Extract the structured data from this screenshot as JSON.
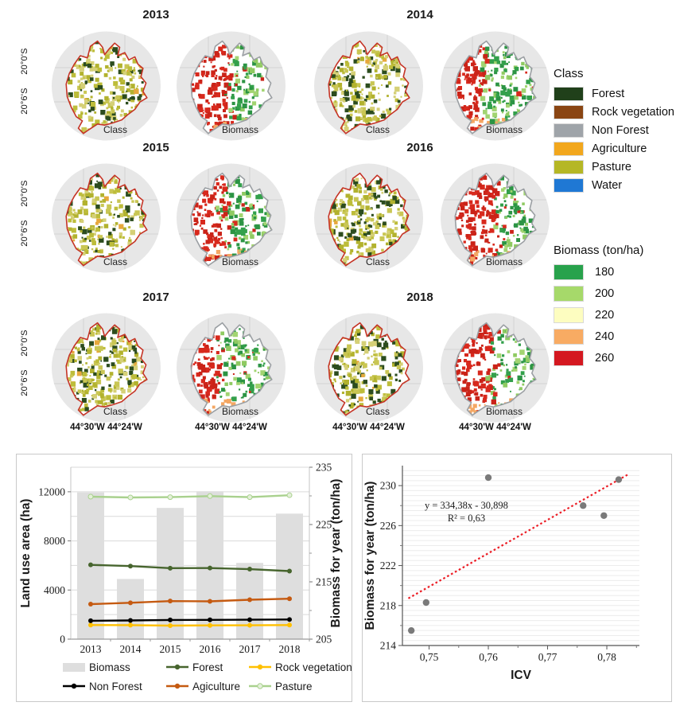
{
  "maps": {
    "years": [
      "2013",
      "2014",
      "2015",
      "2016",
      "2017",
      "2018"
    ],
    "panel_types": [
      "Class",
      "Biomass"
    ],
    "lat_ticks": [
      "20°0'S",
      "20°6'S"
    ],
    "lon_tick": "44°30'W  44°24'W",
    "colors": {
      "disc": "#e7e7e7",
      "graticule": "#d3d3d3",
      "class_border": "#c53426",
      "biomass_border": "#9b9fa3",
      "class_fills": [
        "#bdbd3a",
        "#c9c654",
        "#d5d077",
        "#b2b22e"
      ],
      "class_forest": "#2c4c1e",
      "class_agri": "#e7a83c",
      "biomass_red": [
        "#d8291d",
        "#ca2318"
      ],
      "biomass_green": [
        "#33a04b",
        "#2c9444"
      ],
      "biomass_lightgreen": [
        "#a2d471",
        "#8fca62"
      ],
      "biomass_orange": "#f4a763"
    },
    "red_extent": [
      50,
      40,
      44,
      54,
      38,
      50
    ],
    "south_strip": [
      0.25,
      0.6,
      0.5,
      0.3,
      0.55,
      0.55
    ]
  },
  "class_legend": {
    "title": "Class",
    "items": [
      {
        "label": "Forest",
        "color": "#20401a"
      },
      {
        "label": "Rock vegetation",
        "color": "#8a4513"
      },
      {
        "label": "Non Forest",
        "color": "#9fa4a9"
      },
      {
        "label": "Agriculture",
        "color": "#f2a71d"
      },
      {
        "label": "Pasture",
        "color": "#b5b725"
      },
      {
        "label": "Water",
        "color": "#1f78d4"
      }
    ]
  },
  "biomass_legend": {
    "title": "Biomass (ton/ha)",
    "items": [
      {
        "label": "180",
        "color": "#28a24c"
      },
      {
        "label": "200",
        "color": "#a6d96a"
      },
      {
        "label": "220",
        "color": "#fdfdc0"
      },
      {
        "label": "240",
        "color": "#f8ab63"
      },
      {
        "label": "260",
        "color": "#d41820"
      }
    ]
  },
  "chart_data": [
    {
      "type": "bar+line",
      "categories": [
        "2013",
        "2014",
        "2015",
        "2016",
        "2017",
        "2018"
      ],
      "bars": {
        "name": "Biomass",
        "axis": "right",
        "color": "#dedede",
        "values": [
          230.6,
          215.5,
          227.9,
          230.8,
          218.3,
          226.9
        ]
      },
      "series": [
        {
          "name": "Forest",
          "color": "#47652e",
          "values": [
            6050,
            5950,
            5780,
            5790,
            5700,
            5540
          ]
        },
        {
          "name": "Agiculture",
          "color": "#c55a11",
          "values": [
            2850,
            2960,
            3100,
            3080,
            3210,
            3290
          ]
        },
        {
          "name": "Rock vegetation",
          "color": "#ffc000",
          "values": [
            1150,
            1140,
            1100,
            1120,
            1130,
            1150
          ]
        },
        {
          "name": "Non Forest",
          "color": "#000000",
          "values": [
            1500,
            1520,
            1560,
            1570,
            1580,
            1600
          ]
        },
        {
          "name": "Pasture",
          "color": "#a9d18e",
          "values": [
            11600,
            11540,
            11560,
            11650,
            11560,
            11720
          ]
        }
      ],
      "ylabel_left": "Land use area (ha)",
      "ylabel_right": "Biomass for year (ton/ha)",
      "ylim_left": [
        0,
        14000
      ],
      "yticks_left": [
        0,
        4000,
        8000,
        12000
      ],
      "ylim_right": [
        205,
        235
      ],
      "yticks_right": [
        205,
        215,
        225,
        235
      ],
      "minor_ticks_right": [
        210,
        220,
        230
      ],
      "grid_step_left": 2000,
      "grid": true,
      "legend_rows": [
        [
          "Biomass",
          "Forest",
          "Rock vegetation"
        ],
        [
          "Non Forest",
          "Agiculture",
          "Pasture"
        ]
      ]
    },
    {
      "type": "scatter",
      "xlabel": "ICV",
      "ylabel": "Biomass for year (ton/ha)",
      "points": [
        {
          "x": 0.747,
          "y": 215.5
        },
        {
          "x": 0.7495,
          "y": 218.3
        },
        {
          "x": 0.76,
          "y": 230.8
        },
        {
          "x": 0.776,
          "y": 228.0
        },
        {
          "x": 0.7795,
          "y": 227.0
        },
        {
          "x": 0.782,
          "y": 230.6
        }
      ],
      "point_color": "#7a7a7a",
      "trend": {
        "slope": 334.38,
        "intercept": -30.898,
        "x0": 0.7465,
        "x1": 0.7838,
        "color": "#ec1c24",
        "style": "dotted"
      },
      "equation_label": "y = 334,38x - 30,898",
      "r2_label": "R² = 0,63",
      "xlim": [
        0.7455,
        0.7855
      ],
      "xticks": [
        0.75,
        0.76,
        0.77,
        0.78
      ],
      "xtick_labels": [
        "0,75",
        "0,76",
        "0,77",
        "0,78"
      ],
      "xticks_minor": [
        0.755,
        0.765,
        0.775,
        0.785
      ],
      "ylim": [
        214,
        232
      ],
      "yticks": [
        214,
        218,
        222,
        226,
        230
      ],
      "yticks_minor": [
        216,
        220,
        224,
        228
      ],
      "grid_minor_step": 0.5,
      "grid_color": "#ececec"
    }
  ]
}
